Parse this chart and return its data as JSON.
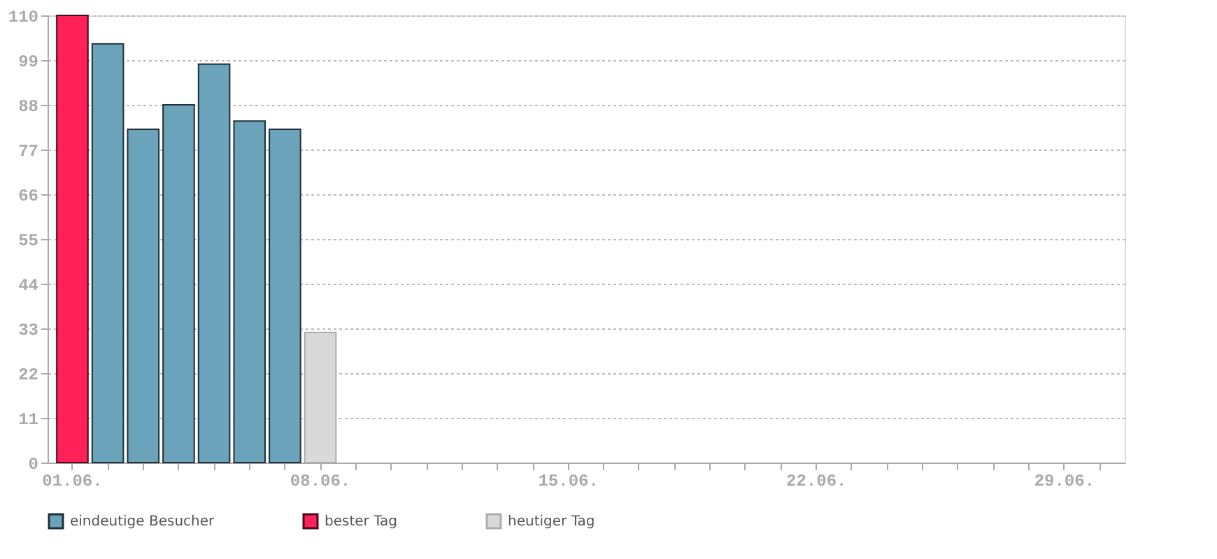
{
  "chart_data": {
    "type": "bar",
    "categories": [
      "01.06.",
      null,
      null,
      null,
      null,
      null,
      null,
      "08.06.",
      null,
      null,
      null,
      null,
      null,
      null,
      "15.06.",
      null,
      null,
      null,
      null,
      null,
      null,
      "22.06.",
      null,
      null,
      null,
      null,
      null,
      null,
      "29.06.",
      null
    ],
    "series": [
      {
        "name": "eindeutige Besucher",
        "color": "#6aa3ba",
        "values": [
          null,
          103,
          82,
          88,
          98,
          84,
          82,
          null,
          null,
          null,
          null,
          null,
          null,
          null,
          null,
          null,
          null,
          null,
          null,
          null,
          null,
          null,
          null,
          null,
          null,
          null,
          null,
          null,
          null,
          null
        ]
      },
      {
        "name": "bester Tag",
        "color": "#ff2158",
        "values": [
          110,
          null,
          null,
          null,
          null,
          null,
          null,
          null,
          null,
          null,
          null,
          null,
          null,
          null,
          null,
          null,
          null,
          null,
          null,
          null,
          null,
          null,
          null,
          null,
          null,
          null,
          null,
          null,
          null,
          null
        ]
      },
      {
        "name": "heutiger Tag",
        "color": "#d9d9d9",
        "values": [
          null,
          null,
          null,
          null,
          null,
          null,
          null,
          32,
          null,
          null,
          null,
          null,
          null,
          null,
          null,
          null,
          null,
          null,
          null,
          null,
          null,
          null,
          null,
          null,
          null,
          null,
          null,
          null,
          null,
          null
        ]
      }
    ],
    "ylim": [
      0,
      110
    ],
    "yticks": [
      0,
      11,
      22,
      33,
      44,
      55,
      66,
      77,
      88,
      99,
      110
    ],
    "grid": "y",
    "legend": "bottom"
  }
}
